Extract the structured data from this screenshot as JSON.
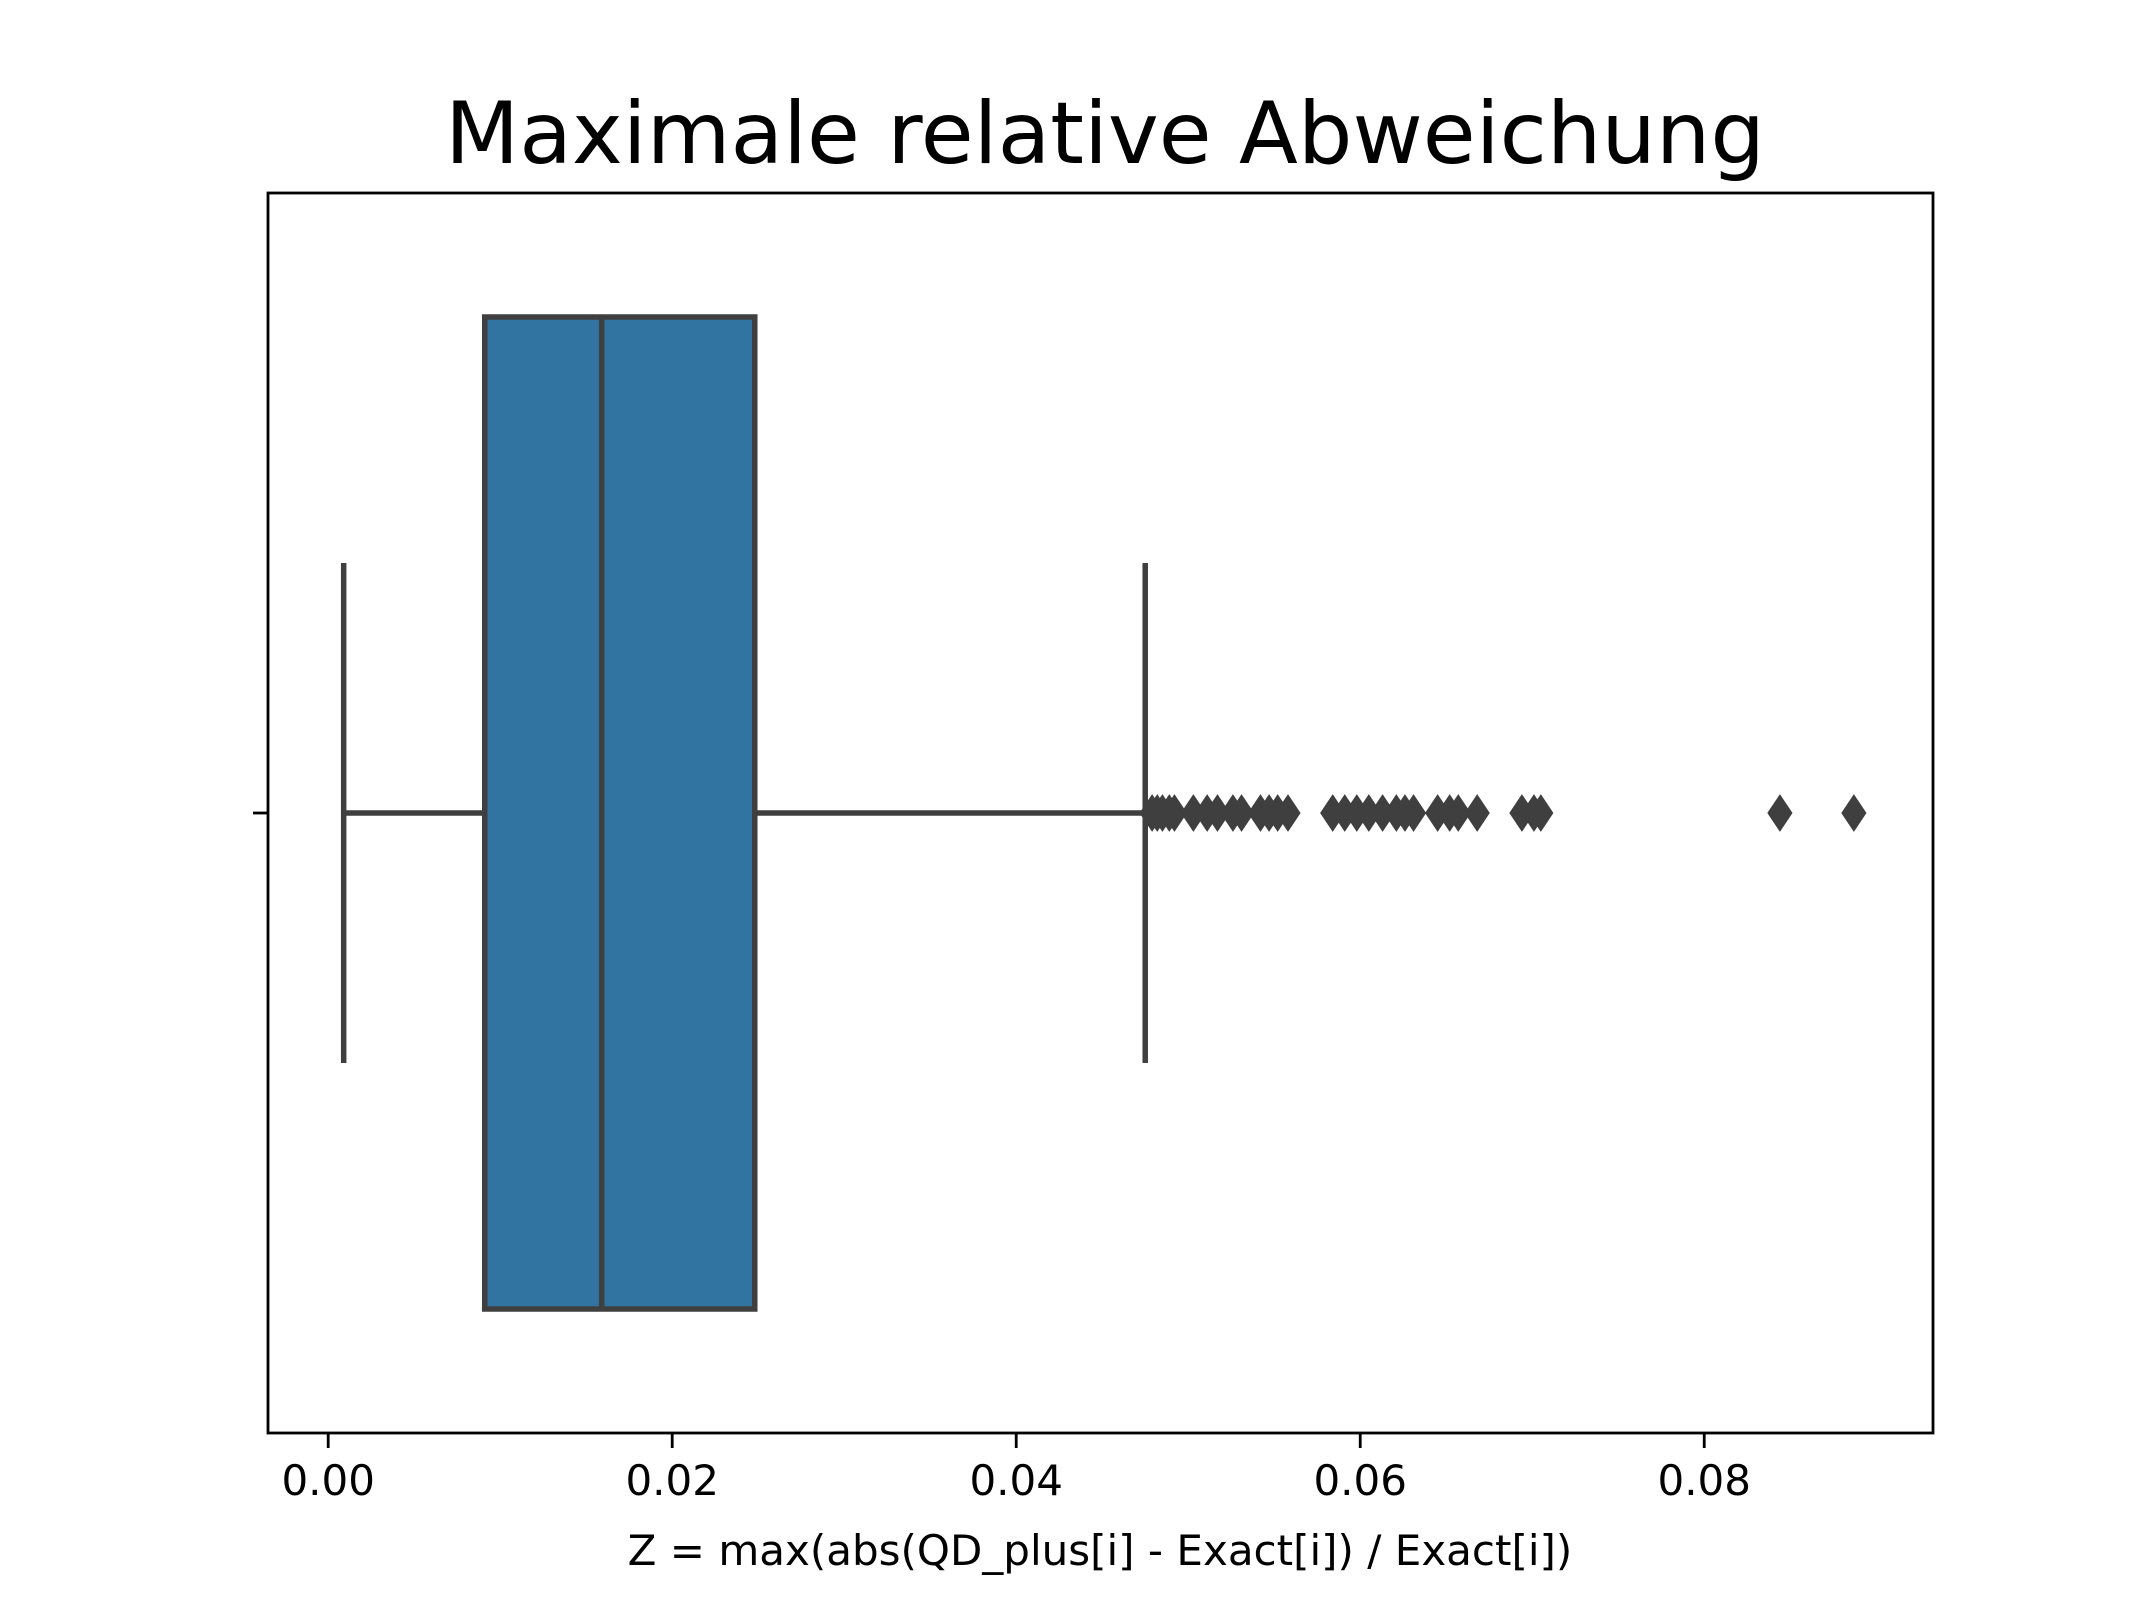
{
  "chart_data": {
    "type": "box",
    "orientation": "horizontal",
    "title": "Maximale relative Abweichung",
    "xlabel": "Z = max(abs(QD_plus[i] - Exact[i]) / Exact[i])",
    "ylabel": "",
    "xlim": [
      -0.0035,
      0.0933
    ],
    "x_ticks": [
      0.0,
      0.02,
      0.04,
      0.06,
      0.08
    ],
    "x_tick_labels": [
      "0.00",
      "0.02",
      "0.04",
      "0.06",
      "0.08"
    ],
    "grid": false,
    "legend": "none",
    "series": [
      {
        "whisker_low": 0.0009,
        "q1": 0.0091,
        "median": 0.0159,
        "q3": 0.0248,
        "whisker_high": 0.0475,
        "outliers": [
          0.0479,
          0.0482,
          0.0485,
          0.0489,
          0.0492,
          0.0503,
          0.0511,
          0.0517,
          0.0526,
          0.0531,
          0.0542,
          0.0547,
          0.0552,
          0.0558,
          0.0584,
          0.0591,
          0.0598,
          0.0605,
          0.0613,
          0.0621,
          0.0626,
          0.0631,
          0.0645,
          0.0652,
          0.0657,
          0.0668,
          0.0694,
          0.0701,
          0.0705,
          0.0844,
          0.0887
        ]
      }
    ],
    "colors": {
      "box_fill": "#3274a1",
      "lines": "#3f3f3f",
      "axes": "#000000"
    }
  }
}
